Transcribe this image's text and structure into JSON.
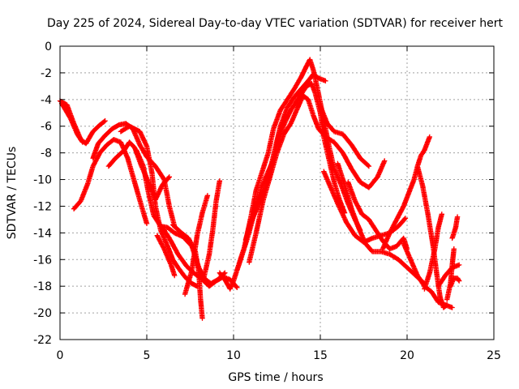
{
  "chart_data": {
    "type": "scatter",
    "title": "Day 225 of 2024, Sidereal Day-to-day VTEC variation (SDTVAR) for receiver hert",
    "xlabel": "GPS time / hours",
    "ylabel": "SDTVAR / TECUs",
    "xlim": [
      0,
      25
    ],
    "ylim": [
      -22,
      0
    ],
    "xticks": [
      0,
      5,
      10,
      15,
      20,
      25
    ],
    "yticks": [
      0,
      -2,
      -4,
      -6,
      -8,
      -10,
      -12,
      -14,
      -16,
      -18,
      -20,
      -22
    ],
    "grid": true,
    "marker": "+",
    "color": "#ff0000",
    "series": [
      {
        "name": "trace-1",
        "points": [
          [
            0.0,
            -4.1
          ],
          [
            0.4,
            -4.4
          ],
          [
            0.8,
            -5.8
          ],
          [
            1.2,
            -7.0
          ],
          [
            1.5,
            -7.3
          ],
          [
            1.9,
            -6.4
          ],
          [
            2.3,
            -5.9
          ],
          [
            2.6,
            -5.6
          ]
        ]
      },
      {
        "name": "trace-2",
        "points": [
          [
            0.1,
            -4.3
          ],
          [
            0.6,
            -5.4
          ],
          [
            1.0,
            -6.6
          ],
          [
            1.3,
            -7.2
          ]
        ]
      },
      {
        "name": "trace-3",
        "points": [
          [
            0.8,
            -12.2
          ],
          [
            1.2,
            -11.6
          ],
          [
            1.6,
            -10.3
          ],
          [
            1.9,
            -9.0
          ],
          [
            2.3,
            -8.0
          ],
          [
            2.7,
            -7.4
          ],
          [
            3.1,
            -7.0
          ],
          [
            3.5,
            -7.2
          ],
          [
            3.9,
            -8.4
          ],
          [
            4.3,
            -10.2
          ],
          [
            4.7,
            -12.0
          ],
          [
            5.0,
            -13.3
          ]
        ]
      },
      {
        "name": "trace-4",
        "points": [
          [
            1.9,
            -8.4
          ],
          [
            2.2,
            -7.3
          ],
          [
            2.6,
            -6.7
          ],
          [
            3.0,
            -6.2
          ],
          [
            3.4,
            -5.9
          ],
          [
            3.8,
            -5.8
          ],
          [
            4.2,
            -6.2
          ],
          [
            4.6,
            -7.4
          ],
          [
            5.0,
            -8.3
          ],
          [
            5.5,
            -9.0
          ],
          [
            6.0,
            -10.0
          ],
          [
            6.3,
            -12.0
          ],
          [
            6.6,
            -13.5
          ]
        ]
      },
      {
        "name": "trace-5",
        "points": [
          [
            2.8,
            -9.0
          ],
          [
            3.2,
            -8.4
          ],
          [
            3.7,
            -7.8
          ],
          [
            4.0,
            -7.2
          ],
          [
            4.3,
            -7.6
          ],
          [
            4.7,
            -9.0
          ],
          [
            5.2,
            -10.5
          ],
          [
            5.5,
            -11.5
          ],
          [
            5.9,
            -10.4
          ],
          [
            6.3,
            -9.8
          ]
        ]
      },
      {
        "name": "trace-6",
        "points": [
          [
            3.5,
            -6.4
          ],
          [
            4.0,
            -6.0
          ],
          [
            4.6,
            -6.4
          ],
          [
            5.0,
            -7.5
          ],
          [
            5.3,
            -9.5
          ],
          [
            5.5,
            -12.0
          ],
          [
            5.8,
            -13.8
          ],
          [
            6.2,
            -15.0
          ],
          [
            6.5,
            -16.0
          ],
          [
            6.8,
            -16.6
          ],
          [
            7.2,
            -17.3
          ],
          [
            7.6,
            -17.8
          ],
          [
            7.9,
            -18.0
          ]
        ]
      },
      {
        "name": "trace-7",
        "points": [
          [
            4.4,
            -7.8
          ],
          [
            4.8,
            -9.0
          ],
          [
            5.1,
            -11.0
          ],
          [
            5.4,
            -12.7
          ],
          [
            5.8,
            -13.5
          ],
          [
            6.2,
            -13.6
          ],
          [
            6.6,
            -14.0
          ],
          [
            7.1,
            -14.3
          ],
          [
            7.6,
            -15.0
          ],
          [
            8.0,
            -16.6
          ],
          [
            8.3,
            -17.4
          ],
          [
            8.7,
            -17.8
          ],
          [
            9.1,
            -17.5
          ],
          [
            9.5,
            -17.0
          ]
        ]
      },
      {
        "name": "trace-8",
        "points": [
          [
            5.6,
            -14.2
          ],
          [
            6.0,
            -15.2
          ],
          [
            6.4,
            -16.4
          ],
          [
            6.6,
            -17.2
          ]
        ]
      },
      {
        "name": "trace-9",
        "points": [
          [
            5.9,
            -13.6
          ],
          [
            6.3,
            -14.4
          ],
          [
            6.8,
            -15.6
          ],
          [
            7.3,
            -16.5
          ],
          [
            7.7,
            -17.0
          ],
          [
            8.2,
            -17.5
          ],
          [
            8.6,
            -18.0
          ],
          [
            9.0,
            -17.6
          ],
          [
            9.4,
            -17.3
          ],
          [
            9.8,
            -17.5
          ],
          [
            10.2,
            -18.1
          ]
        ]
      },
      {
        "name": "trace-10",
        "points": [
          [
            6.5,
            -13.4
          ],
          [
            7.0,
            -14.0
          ],
          [
            7.4,
            -14.4
          ],
          [
            7.8,
            -15.4
          ],
          [
            8.0,
            -17.0
          ],
          [
            8.1,
            -19.0
          ],
          [
            8.2,
            -20.4
          ]
        ]
      },
      {
        "name": "trace-11",
        "points": [
          [
            7.2,
            -18.6
          ],
          [
            7.6,
            -16.8
          ],
          [
            7.9,
            -14.2
          ],
          [
            8.2,
            -12.5
          ],
          [
            8.5,
            -11.2
          ]
        ]
      },
      {
        "name": "trace-12",
        "points": [
          [
            8.3,
            -17.3
          ],
          [
            8.6,
            -15.6
          ],
          [
            8.8,
            -13.8
          ],
          [
            9.0,
            -11.6
          ],
          [
            9.2,
            -10.1
          ]
        ]
      },
      {
        "name": "trace-13",
        "points": [
          [
            9.2,
            -17.0
          ],
          [
            9.5,
            -17.5
          ],
          [
            9.8,
            -18.2
          ],
          [
            10.0,
            -17.6
          ],
          [
            10.4,
            -16.0
          ],
          [
            10.8,
            -14.4
          ],
          [
            11.1,
            -13.0
          ],
          [
            11.3,
            -12.0
          ],
          [
            11.6,
            -10.6
          ],
          [
            12.0,
            -9.4
          ],
          [
            12.3,
            -8.5
          ],
          [
            12.6,
            -6.8
          ],
          [
            13.0,
            -5.6
          ],
          [
            13.3,
            -4.8
          ],
          [
            13.8,
            -3.8
          ],
          [
            14.2,
            -3.0
          ],
          [
            14.5,
            -2.8
          ],
          [
            14.7,
            -3.5
          ],
          [
            15.0,
            -5.0
          ],
          [
            15.2,
            -6.8
          ],
          [
            15.5,
            -8.5
          ],
          [
            15.8,
            -10.2
          ],
          [
            16.1,
            -11.5
          ],
          [
            16.4,
            -12.5
          ]
        ]
      },
      {
        "name": "trace-14",
        "points": [
          [
            10.2,
            -16.8
          ],
          [
            10.6,
            -15.2
          ],
          [
            11.0,
            -12.8
          ],
          [
            11.3,
            -10.8
          ],
          [
            11.6,
            -9.6
          ],
          [
            12.0,
            -8.0
          ],
          [
            12.3,
            -6.2
          ],
          [
            12.7,
            -4.8
          ],
          [
            13.1,
            -4.0
          ],
          [
            13.5,
            -3.2
          ],
          [
            13.9,
            -2.3
          ],
          [
            14.2,
            -1.5
          ],
          [
            14.4,
            -1.0
          ],
          [
            14.6,
            -1.8
          ],
          [
            14.9,
            -3.6
          ],
          [
            15.2,
            -5.5
          ],
          [
            15.5,
            -7.5
          ],
          [
            15.8,
            -9.2
          ],
          [
            16.2,
            -10.4
          ],
          [
            16.6,
            -11.8
          ],
          [
            17.0,
            -13.0
          ],
          [
            17.3,
            -13.8
          ]
        ]
      },
      {
        "name": "trace-15",
        "points": [
          [
            10.9,
            -16.2
          ],
          [
            11.3,
            -14.0
          ],
          [
            11.7,
            -11.6
          ],
          [
            12.1,
            -9.8
          ],
          [
            12.5,
            -8.0
          ],
          [
            12.9,
            -6.6
          ],
          [
            13.3,
            -5.8
          ],
          [
            13.7,
            -4.6
          ],
          [
            14.0,
            -3.7
          ],
          [
            14.3,
            -4.0
          ],
          [
            14.6,
            -5.2
          ],
          [
            14.9,
            -6.2
          ],
          [
            15.3,
            -6.8
          ],
          [
            15.8,
            -7.2
          ],
          [
            16.3,
            -8.0
          ],
          [
            16.8,
            -9.2
          ],
          [
            17.3,
            -10.2
          ],
          [
            17.8,
            -10.6
          ],
          [
            18.3,
            -9.8
          ],
          [
            18.7,
            -8.6
          ]
        ]
      },
      {
        "name": "trace-16",
        "points": [
          [
            10.7,
            -14.5
          ],
          [
            11.0,
            -13.2
          ],
          [
            11.4,
            -12.0
          ],
          [
            11.9,
            -10.4
          ],
          [
            12.3,
            -8.2
          ],
          [
            12.7,
            -6.0
          ],
          [
            13.1,
            -4.6
          ],
          [
            13.5,
            -3.8
          ],
          [
            13.9,
            -3.2
          ],
          [
            14.3,
            -2.6
          ],
          [
            14.6,
            -2.1
          ],
          [
            14.9,
            -2.4
          ],
          [
            15.3,
            -2.6
          ]
        ]
      },
      {
        "name": "trace-17",
        "points": [
          [
            15.0,
            -4.5
          ],
          [
            15.4,
            -5.8
          ],
          [
            15.8,
            -6.4
          ],
          [
            16.3,
            -6.6
          ],
          [
            16.8,
            -7.4
          ],
          [
            17.3,
            -8.4
          ],
          [
            17.8,
            -9.0
          ]
        ]
      },
      {
        "name": "trace-18",
        "points": [
          [
            15.2,
            -9.4
          ],
          [
            15.6,
            -10.6
          ],
          [
            16.0,
            -11.8
          ],
          [
            16.5,
            -13.2
          ],
          [
            17.0,
            -14.2
          ],
          [
            17.5,
            -14.7
          ],
          [
            18.0,
            -14.4
          ],
          [
            18.5,
            -14.2
          ],
          [
            19.0,
            -14.0
          ],
          [
            19.5,
            -13.5
          ],
          [
            19.9,
            -12.9
          ]
        ]
      },
      {
        "name": "trace-19",
        "points": [
          [
            16.0,
            -8.8
          ],
          [
            16.4,
            -10.4
          ],
          [
            16.8,
            -12.2
          ],
          [
            17.2,
            -13.6
          ],
          [
            17.6,
            -14.8
          ],
          [
            18.0,
            -15.4
          ],
          [
            18.5,
            -15.4
          ],
          [
            19.0,
            -15.6
          ],
          [
            19.5,
            -16.0
          ],
          [
            20.0,
            -16.6
          ],
          [
            20.5,
            -17.2
          ],
          [
            21.0,
            -17.8
          ]
        ]
      },
      {
        "name": "trace-20",
        "points": [
          [
            16.6,
            -10.2
          ],
          [
            17.0,
            -11.6
          ],
          [
            17.4,
            -12.6
          ],
          [
            17.8,
            -13.0
          ],
          [
            18.2,
            -13.8
          ],
          [
            18.6,
            -14.6
          ],
          [
            19.0,
            -15.2
          ],
          [
            19.4,
            -15.0
          ],
          [
            19.8,
            -14.4
          ],
          [
            20.0,
            -15.2
          ]
        ]
      },
      {
        "name": "trace-21",
        "points": [
          [
            18.6,
            -15.2
          ],
          [
            19.0,
            -14.0
          ],
          [
            19.4,
            -13.0
          ],
          [
            19.8,
            -12.0
          ],
          [
            20.1,
            -11.0
          ],
          [
            20.4,
            -10.0
          ],
          [
            20.6,
            -9.0
          ],
          [
            20.8,
            -8.2
          ],
          [
            21.0,
            -7.8
          ],
          [
            21.3,
            -6.8
          ]
        ]
      },
      {
        "name": "trace-22",
        "points": [
          [
            19.8,
            -14.8
          ],
          [
            20.2,
            -16.0
          ],
          [
            20.6,
            -17.2
          ],
          [
            21.0,
            -18.0
          ],
          [
            21.4,
            -18.4
          ],
          [
            21.8,
            -19.2
          ],
          [
            22.2,
            -19.4
          ],
          [
            22.6,
            -19.6
          ]
        ]
      },
      {
        "name": "trace-23",
        "points": [
          [
            20.6,
            -9.0
          ],
          [
            20.9,
            -10.5
          ],
          [
            21.2,
            -12.6
          ],
          [
            21.5,
            -15.0
          ],
          [
            21.7,
            -17.0
          ],
          [
            21.9,
            -18.8
          ],
          [
            22.1,
            -19.6
          ],
          [
            22.3,
            -19.4
          ]
        ]
      },
      {
        "name": "trace-24",
        "points": [
          [
            21.0,
            -18.2
          ],
          [
            21.3,
            -17.0
          ],
          [
            21.6,
            -15.2
          ],
          [
            21.8,
            -13.6
          ],
          [
            22.0,
            -12.6
          ]
        ]
      },
      {
        "name": "trace-25",
        "points": [
          [
            21.8,
            -18.0
          ],
          [
            22.2,
            -17.2
          ],
          [
            22.6,
            -16.6
          ],
          [
            23.0,
            -16.4
          ]
        ]
      },
      {
        "name": "trace-26",
        "points": [
          [
            22.3,
            -19.0
          ],
          [
            22.5,
            -17.8
          ],
          [
            22.6,
            -16.4
          ],
          [
            22.7,
            -15.2
          ]
        ]
      },
      {
        "name": "trace-27",
        "points": [
          [
            22.5,
            -18.0
          ],
          [
            22.7,
            -17.4
          ],
          [
            22.9,
            -17.4
          ],
          [
            23.0,
            -17.6
          ]
        ]
      },
      {
        "name": "trace-28",
        "points": [
          [
            22.6,
            -14.4
          ],
          [
            22.8,
            -13.6
          ],
          [
            22.9,
            -12.8
          ]
        ]
      }
    ]
  }
}
